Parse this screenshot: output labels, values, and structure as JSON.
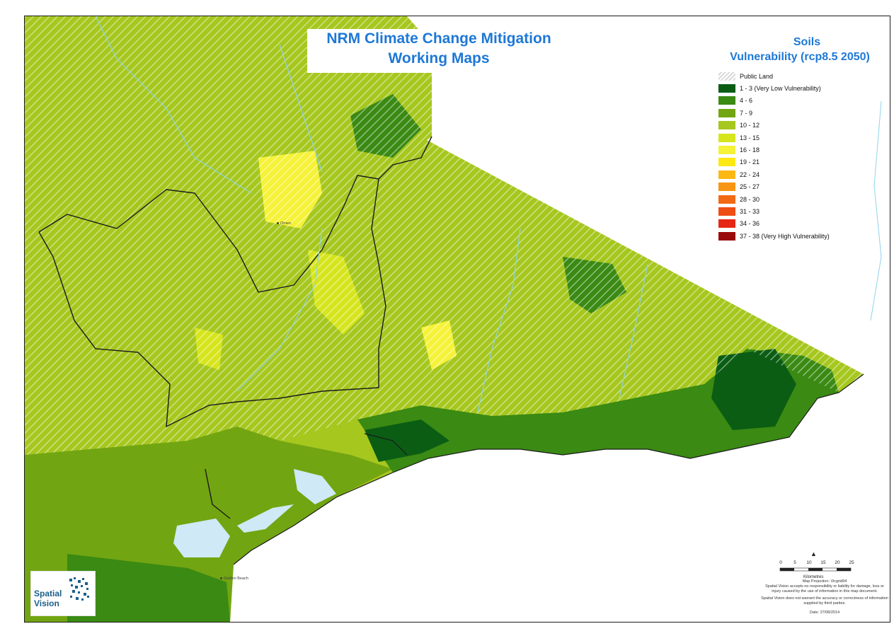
{
  "map": {
    "title_line1": "NRM Climate Change Mitigation",
    "title_line2": "Working Maps",
    "colors": {
      "public_land_hatch": "#d9d9d9",
      "base_green": "#a6c71e",
      "coast_water": "#cfe9f6",
      "boundary": "#1a1a1a"
    }
  },
  "legend": {
    "title_line1": "Soils",
    "title_line2": "Vulnerability (rcp8.5 2050)",
    "items": [
      {
        "label": "Public Land",
        "color": "hatch"
      },
      {
        "label": "1 - 3 (Very Low Vulnerability)",
        "color": "#0b5d14"
      },
      {
        "label": "4 - 6",
        "color": "#3a8a13"
      },
      {
        "label": "7 - 9",
        "color": "#72a512"
      },
      {
        "label": "10 - 12",
        "color": "#a6c71e"
      },
      {
        "label": "13 - 15",
        "color": "#d6e51c"
      },
      {
        "label": "16 - 18",
        "color": "#f5f238"
      },
      {
        "label": "19 - 21",
        "color": "#fde814"
      },
      {
        "label": "22 - 24",
        "color": "#fbb814"
      },
      {
        "label": "25 - 27",
        "color": "#f89614"
      },
      {
        "label": "28 - 30",
        "color": "#f26a14"
      },
      {
        "label": "31 - 33",
        "color": "#ee4d14"
      },
      {
        "label": "34 - 36",
        "color": "#e52714"
      },
      {
        "label": "37 - 38 (Very High Vulnerability)",
        "color": "#9b0a0a"
      }
    ]
  },
  "scale": {
    "ticks": [
      "0",
      "5",
      "10",
      "15",
      "20",
      "25"
    ],
    "unit": "Kilometres"
  },
  "footer": {
    "projection": "Map Projection: Vicgrid94",
    "disclaimer1": "Spatial Vision accepts no responsibility or liability for damage, loss or injury caused by the use of information in this map document.",
    "disclaimer2": "Spatial Vision does not warrant the accuracy or correctness of information supplied by third parties.",
    "date": "Date: 27/08/2014"
  },
  "logo": {
    "line1": "Spatial",
    "line2": "Vision"
  },
  "places": [
    {
      "name": "Omeo",
      "anchor": "omeo"
    },
    {
      "name": "Golden Beach",
      "anchor": "golden"
    }
  ]
}
